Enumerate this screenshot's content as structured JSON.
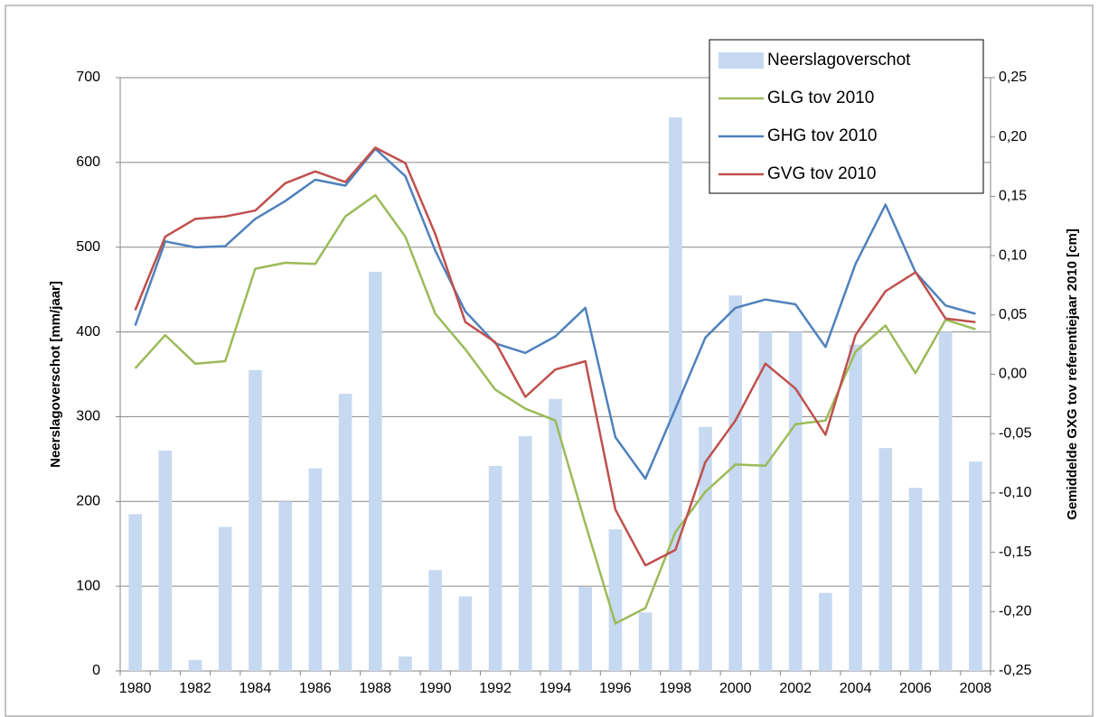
{
  "chart_data": {
    "type": "bar-line",
    "categories": [
      "1980",
      null,
      "1982",
      null,
      "1984",
      null,
      "1986",
      null,
      "1988",
      null,
      "1990",
      null,
      "1992",
      null,
      "1994",
      null,
      "1996",
      null,
      "1998",
      null,
      "2000",
      null,
      "2002",
      null,
      "2004",
      null,
      "2006",
      null,
      "2008"
    ],
    "y_label": "Neerslagoverschot [mm/jaar]",
    "y2_label": "Gemiddelde GXG tov referentiejaar 2010 [cm]",
    "ylim": [
      0,
      700
    ],
    "yticks": [
      0,
      100,
      200,
      300,
      400,
      500,
      600,
      700
    ],
    "y2lim": [
      -0.25,
      0.25
    ],
    "y2ticks": [
      {
        "value": -0.25,
        "label": "-0,25"
      },
      {
        "value": -0.2,
        "label": "-0,20"
      },
      {
        "value": -0.15,
        "label": "-0,15"
      },
      {
        "value": -0.1,
        "label": "-0,10"
      },
      {
        "value": -0.05,
        "label": "-0,05"
      },
      {
        "value": 0,
        "label": "0,00"
      },
      {
        "value": 0.05,
        "label": "0,05"
      },
      {
        "value": 0.1,
        "label": "0,10"
      },
      {
        "value": 0.15,
        "label": "0,15"
      },
      {
        "value": 0.2,
        "label": "0,20"
      },
      {
        "value": 0.25,
        "label": "0,25"
      }
    ],
    "grid": true,
    "legend": "top-right",
    "series": [
      {
        "name": "Neerslagoverschot",
        "type": "bar",
        "color": "#c6d9f1",
        "values": [
          185,
          260,
          13,
          170,
          355,
          200,
          239,
          327,
          471,
          17,
          119,
          88,
          242,
          277,
          321,
          99,
          167,
          69,
          653,
          288,
          443,
          400,
          400,
          92,
          385,
          263,
          216,
          400,
          247
        ]
      },
      {
        "name": "GLG tov 2010",
        "type": "line",
        "axis": "y2",
        "color": "#9bbb59",
        "values": [
          0.005,
          0.033,
          0.009,
          0.011,
          0.089,
          0.094,
          0.093,
          0.133,
          0.151,
          0.116,
          0.051,
          0.021,
          -0.013,
          -0.029,
          -0.039,
          -0.126,
          -0.21,
          -0.197,
          -0.133,
          -0.099,
          -0.076,
          -0.077,
          -0.042,
          -0.039,
          0.019,
          0.041,
          0.001,
          0.046,
          0.038
        ]
      },
      {
        "name": "GHG tov 2010",
        "type": "line",
        "axis": "y2",
        "color": "#4f81bd",
        "values": [
          0.041,
          0.112,
          0.107,
          0.108,
          0.131,
          0.146,
          0.164,
          0.159,
          0.19,
          0.167,
          0.104,
          0.053,
          0.026,
          0.018,
          0.032,
          0.056,
          -0.053,
          -0.088,
          -0.029,
          0.031,
          0.056,
          0.063,
          0.059,
          0.023,
          0.093,
          0.143,
          0.086,
          0.058,
          0.051
        ]
      },
      {
        "name": "GVG tov 2010",
        "type": "line",
        "axis": "y2",
        "color": "#c0504d",
        "values": [
          0.054,
          0.116,
          0.131,
          0.133,
          0.138,
          0.161,
          0.171,
          0.162,
          0.191,
          0.178,
          0.118,
          0.044,
          0.027,
          -0.019,
          0.004,
          0.011,
          -0.114,
          -0.161,
          -0.148,
          -0.074,
          -0.039,
          0.009,
          -0.012,
          -0.051,
          0.033,
          0.07,
          0.086,
          0.047,
          0.044
        ]
      }
    ]
  }
}
